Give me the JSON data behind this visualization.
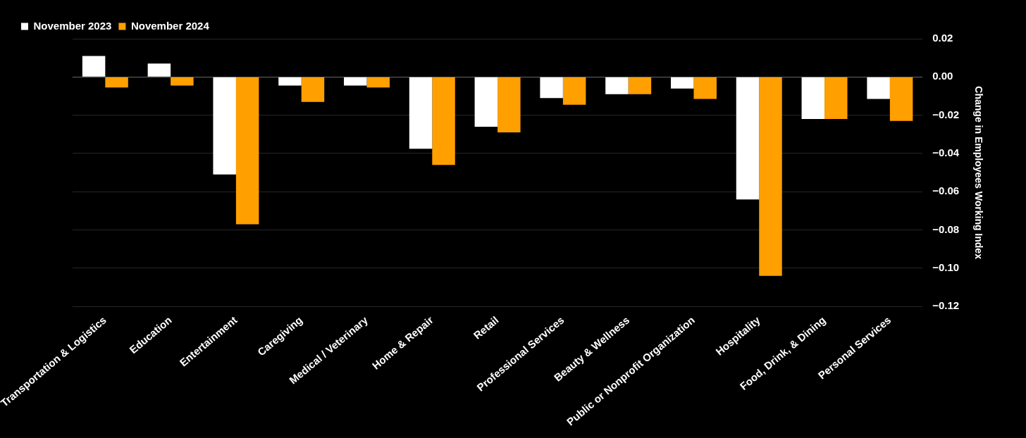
{
  "chart_data": {
    "type": "bar",
    "ylabel": "Change in Employees Working Index",
    "categories": [
      "Transportation & Logistics",
      "Education",
      "Entertainment",
      "Caregiving",
      "Medical / Veterinary",
      "Home & Repair",
      "Retail",
      "Professional Services",
      "Beauty & Wellness",
      "Public or Nonprofit Organization",
      "Hospitality",
      "Food, Drink, & Dining",
      "Personal Services"
    ],
    "series": [
      {
        "name": "November 2023",
        "color": "#ffffff",
        "values": [
          0.011,
          0.007,
          -0.051,
          -0.0045,
          -0.0045,
          -0.0375,
          -0.026,
          -0.011,
          -0.009,
          -0.006,
          -0.064,
          -0.022,
          -0.0115
        ]
      },
      {
        "name": "November 2024",
        "color": "#ff9f00",
        "values": [
          -0.0055,
          -0.0045,
          -0.077,
          -0.013,
          -0.0055,
          -0.046,
          -0.029,
          -0.0145,
          -0.009,
          -0.0115,
          -0.104,
          -0.022,
          -0.023
        ]
      }
    ],
    "ylim": [
      -0.12,
      0.02
    ],
    "yticks": [
      {
        "value": 0.02,
        "label": "0.02"
      },
      {
        "value": 0,
        "label": "0.00"
      },
      {
        "value": -0.02,
        "label": "−0.02"
      },
      {
        "value": -0.04,
        "label": "−0.04"
      },
      {
        "value": -0.06,
        "label": "−0.06"
      },
      {
        "value": -0.08,
        "label": "−0.08"
      },
      {
        "value": -0.1,
        "label": "−0.10"
      },
      {
        "value": -0.12,
        "label": "−0.12"
      }
    ],
    "grid": "y",
    "legend": "top left"
  }
}
